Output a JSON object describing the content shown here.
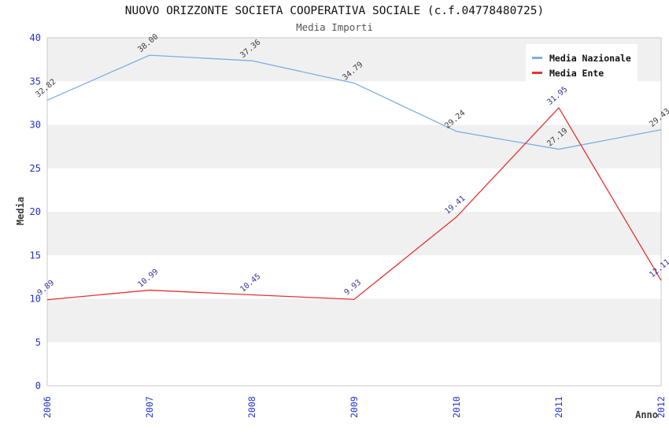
{
  "header": {
    "title": "NUOVO ORIZZONTE SOCIETA COOPERATIVA SOCIALE (c.f.04778480725)",
    "subtitle": "Media Importi"
  },
  "legend": {
    "items": [
      {
        "label": "Media Nazionale",
        "color": "#7aafe4"
      },
      {
        "label": "Media Ente",
        "color": "#e53232"
      }
    ]
  },
  "chart_data": {
    "type": "line",
    "title": "NUOVO ORIZZONTE SOCIETA COOPERATIVA SOCIALE (c.f.04778480725)",
    "subtitle": "Media Importi",
    "xlabel": "Anno",
    "ylabel": "Media",
    "categories": [
      "2006",
      "2007",
      "2008",
      "2009",
      "2010",
      "2011",
      "2012"
    ],
    "series": [
      {
        "name": "Media Nazionale",
        "color": "#7aafe4",
        "label_color": "#3b3b3b",
        "values": [
          32.82,
          38.0,
          37.36,
          34.79,
          29.24,
          27.19,
          29.43
        ],
        "point_labels": [
          "32.82",
          "38.00",
          "37.36",
          "34.79",
          "29.24",
          "27.19",
          "29.43"
        ]
      },
      {
        "name": "Media Ente",
        "color": "#e53232",
        "label_color": "#333399",
        "values": [
          9.89,
          10.99,
          10.45,
          9.93,
          19.41,
          31.95,
          12.11
        ],
        "point_labels": [
          "9.89",
          "10.99",
          "10.45",
          "9.93",
          "19.41",
          "31.95",
          "12.11"
        ]
      }
    ],
    "ylim": [
      0,
      40
    ],
    "ytick_step": 5,
    "grid": "alternating-horizontal-bands",
    "band_colors": [
      "#ffffff",
      "#f0f0f0"
    ],
    "plot_border_color": "#c9c9c9",
    "tick_label_color": "#2233cc",
    "axis_title_color": "#3b3b3b",
    "legend_position": "top-right"
  }
}
